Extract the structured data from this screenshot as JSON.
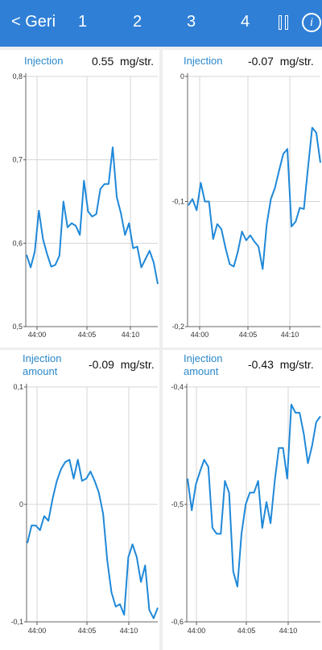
{
  "header": {
    "back_label": "< Geri",
    "tabs": [
      "1",
      "2",
      "3",
      "4"
    ],
    "pause_icon": "pause-icon",
    "info_icon": "info-icon",
    "accent": "#2f7fd6"
  },
  "panels": [
    {
      "title": "Injection",
      "value": "0.55",
      "unit": "mg/str.",
      "chart_data": {
        "type": "line",
        "ylim": [
          0.5,
          0.8
        ],
        "yticks": [
          "0,8",
          "0,7",
          "0,6",
          "0,5"
        ],
        "xticks": [
          "44:00",
          "44:05",
          "44:10"
        ],
        "line_color": "#1f88d8",
        "values": [
          0.586,
          0.571,
          0.59,
          0.639,
          0.605,
          0.587,
          0.572,
          0.574,
          0.585,
          0.65,
          0.619,
          0.624,
          0.621,
          0.61,
          0.675,
          0.638,
          0.632,
          0.635,
          0.665,
          0.671,
          0.671,
          0.715,
          0.655,
          0.636,
          0.61,
          0.624,
          0.594,
          0.596,
          0.571,
          0.581,
          0.591,
          0.577,
          0.551
        ]
      }
    },
    {
      "title": "Injection",
      "value": "-0.07",
      "unit": "mg/str.",
      "chart_data": {
        "type": "line",
        "ylim": [
          -0.2,
          0.0
        ],
        "yticks": [
          "0",
          "-0,1",
          "-0,2"
        ],
        "xticks": [
          "44:00",
          "44:05",
          "44:10"
        ],
        "line_color": "#1f88d8",
        "values": [
          -0.103,
          -0.098,
          -0.107,
          -0.085,
          -0.1,
          -0.1,
          -0.13,
          -0.118,
          -0.122,
          -0.137,
          -0.15,
          -0.152,
          -0.14,
          -0.124,
          -0.131,
          -0.127,
          -0.132,
          -0.136,
          -0.154,
          -0.118,
          -0.098,
          -0.089,
          -0.075,
          -0.062,
          -0.058,
          -0.12,
          -0.116,
          -0.105,
          -0.106,
          -0.073,
          -0.041,
          -0.045,
          -0.069
        ]
      }
    },
    {
      "title": "Injection\namount",
      "value": "-0.09",
      "unit": "mg/str.",
      "chart_data": {
        "type": "line",
        "ylim": [
          -0.1,
          0.1
        ],
        "yticks": [
          "0,1",
          "0",
          "-0,1"
        ],
        "xticks": [
          "44:00",
          "44:05",
          "44:10"
        ],
        "line_color": "#1f88d8",
        "values": [
          -0.033,
          -0.018,
          -0.018,
          -0.022,
          -0.01,
          -0.014,
          0.005,
          0.02,
          0.03,
          0.036,
          0.038,
          0.022,
          0.038,
          0.02,
          0.022,
          0.028,
          0.02,
          0.01,
          -0.008,
          -0.048,
          -0.075,
          -0.087,
          -0.085,
          -0.094,
          -0.045,
          -0.034,
          -0.045,
          -0.066,
          -0.052,
          -0.09,
          -0.097,
          -0.088
        ]
      }
    },
    {
      "title": "Injection\namount",
      "value": "-0.43",
      "unit": "mg/str.",
      "chart_data": {
        "type": "line",
        "ylim": [
          -0.6,
          -0.4
        ],
        "yticks": [
          "-0,4",
          "-0,5",
          "-0,6"
        ],
        "xticks": [
          "44:00",
          "44:05",
          "44:10"
        ],
        "line_color": "#1f88d8",
        "values": [
          -0.478,
          -0.505,
          -0.483,
          -0.472,
          -0.462,
          -0.468,
          -0.52,
          -0.525,
          -0.525,
          -0.48,
          -0.49,
          -0.557,
          -0.57,
          -0.525,
          -0.5,
          -0.49,
          -0.49,
          -0.48,
          -0.52,
          -0.498,
          -0.516,
          -0.48,
          -0.452,
          -0.452,
          -0.478,
          -0.415,
          -0.422,
          -0.422,
          -0.44,
          -0.465,
          -0.45,
          -0.43,
          -0.425
        ]
      }
    }
  ]
}
